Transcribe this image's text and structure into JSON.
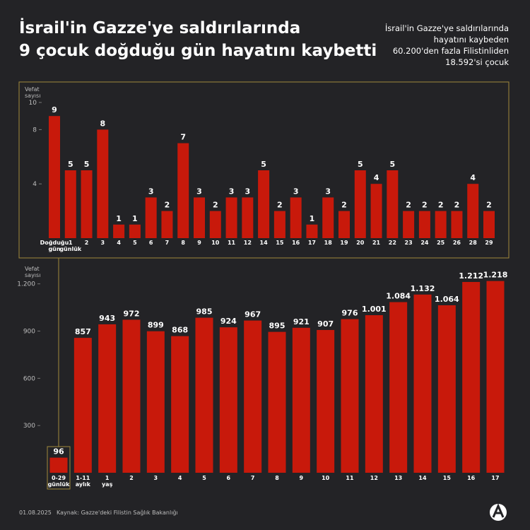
{
  "title": [
    "İsrail'in Gazze'ye saldırılarında",
    "9 çocuk doğduğu gün hayatını kaybetti"
  ],
  "subtitle": [
    "İsrail'in Gazze'ye saldırılarında",
    "hayatını kaybeden",
    "60.200'den fazla Filistinliden",
    "18.592'si çocuk"
  ],
  "date": "01.08.2025",
  "source": "Kaynak: Gazze'deki Filistin Sağlık Bakanlığı",
  "chart_data": [
    {
      "type": "bar",
      "y_label": "Vefat sayısı",
      "color": "#c8190b",
      "categories": [
        "Doğduğu gün",
        "1 günlük",
        "2",
        "3",
        "4",
        "5",
        "6",
        "7",
        "8",
        "9",
        "10",
        "11",
        "12",
        "14",
        "15",
        "16",
        "17",
        "18",
        "19",
        "20",
        "21",
        "22",
        "23",
        "24",
        "25",
        "26",
        "28",
        "29"
      ],
      "values": [
        9,
        5,
        5,
        8,
        1,
        1,
        3,
        2,
        7,
        3,
        2,
        3,
        3,
        5,
        2,
        3,
        1,
        3,
        2,
        5,
        4,
        5,
        2,
        2,
        2,
        2,
        4,
        2
      ],
      "ylim": [
        0,
        10
      ],
      "yticks": [
        4,
        8,
        10
      ]
    },
    {
      "type": "bar",
      "y_label": "Vefat sayısı",
      "color": "#c8190b",
      "categories": [
        "0-29 günlük",
        "1-11 aylık",
        "1 yaş",
        "2",
        "3",
        "4",
        "5",
        "6",
        "7",
        "8",
        "9",
        "10",
        "11",
        "12",
        "13",
        "14",
        "15",
        "16",
        "17"
      ],
      "values": [
        96,
        857,
        943,
        972,
        899,
        868,
        985,
        924,
        967,
        895,
        921,
        907,
        976,
        1001,
        1084,
        1132,
        1064,
        1212,
        1218
      ],
      "value_labels": [
        "96",
        "857",
        "943",
        "972",
        "899",
        "868",
        "985",
        "924",
        "967",
        "895",
        "921",
        "907",
        "976",
        "1.001",
        "1.084",
        "1.132",
        "1.064",
        "1.212",
        "1.218"
      ],
      "ylim": [
        0,
        1230
      ],
      "yticks": [
        300,
        600,
        900,
        {
          "value": 1200,
          "label": "1.200"
        }
      ]
    }
  ]
}
